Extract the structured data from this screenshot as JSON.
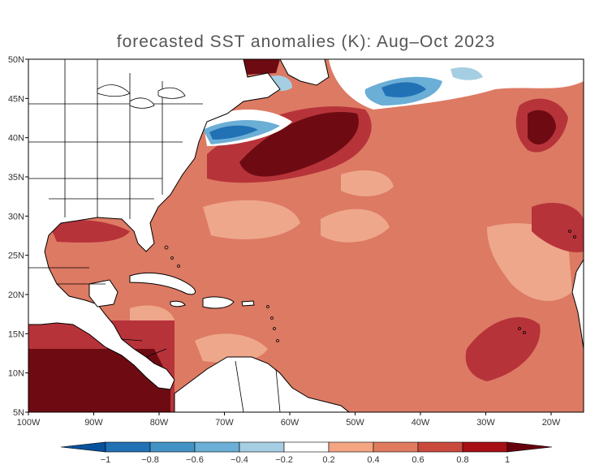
{
  "title": "forecasted SST anomalies (K): Aug–Oct 2023",
  "lat_labels": [
    "50N",
    "45N",
    "40N",
    "35N",
    "30N",
    "25N",
    "20N",
    "15N",
    "10N",
    "5N"
  ],
  "lon_labels": [
    "100W",
    "90W",
    "80W",
    "70W",
    "60W",
    "50W",
    "40W",
    "30W",
    "20W"
  ],
  "colorbar": {
    "labels": [
      "−1",
      "−0.8",
      "−0.6",
      "−0.4",
      "−0.2",
      "0.2",
      "0.4",
      "0.6",
      "0.8",
      "1"
    ],
    "colors": [
      "#08519c",
      "#2171b5",
      "#4292c6",
      "#6baed6",
      "#a6cee3",
      "#ffffff",
      "#f4a582",
      "#e07b5f",
      "#c94a3d",
      "#a50f15",
      "#67000d"
    ]
  },
  "palette": {
    "ocean_base": "#dd7a63",
    "land": "#ffffff",
    "coast": "#000000"
  }
}
